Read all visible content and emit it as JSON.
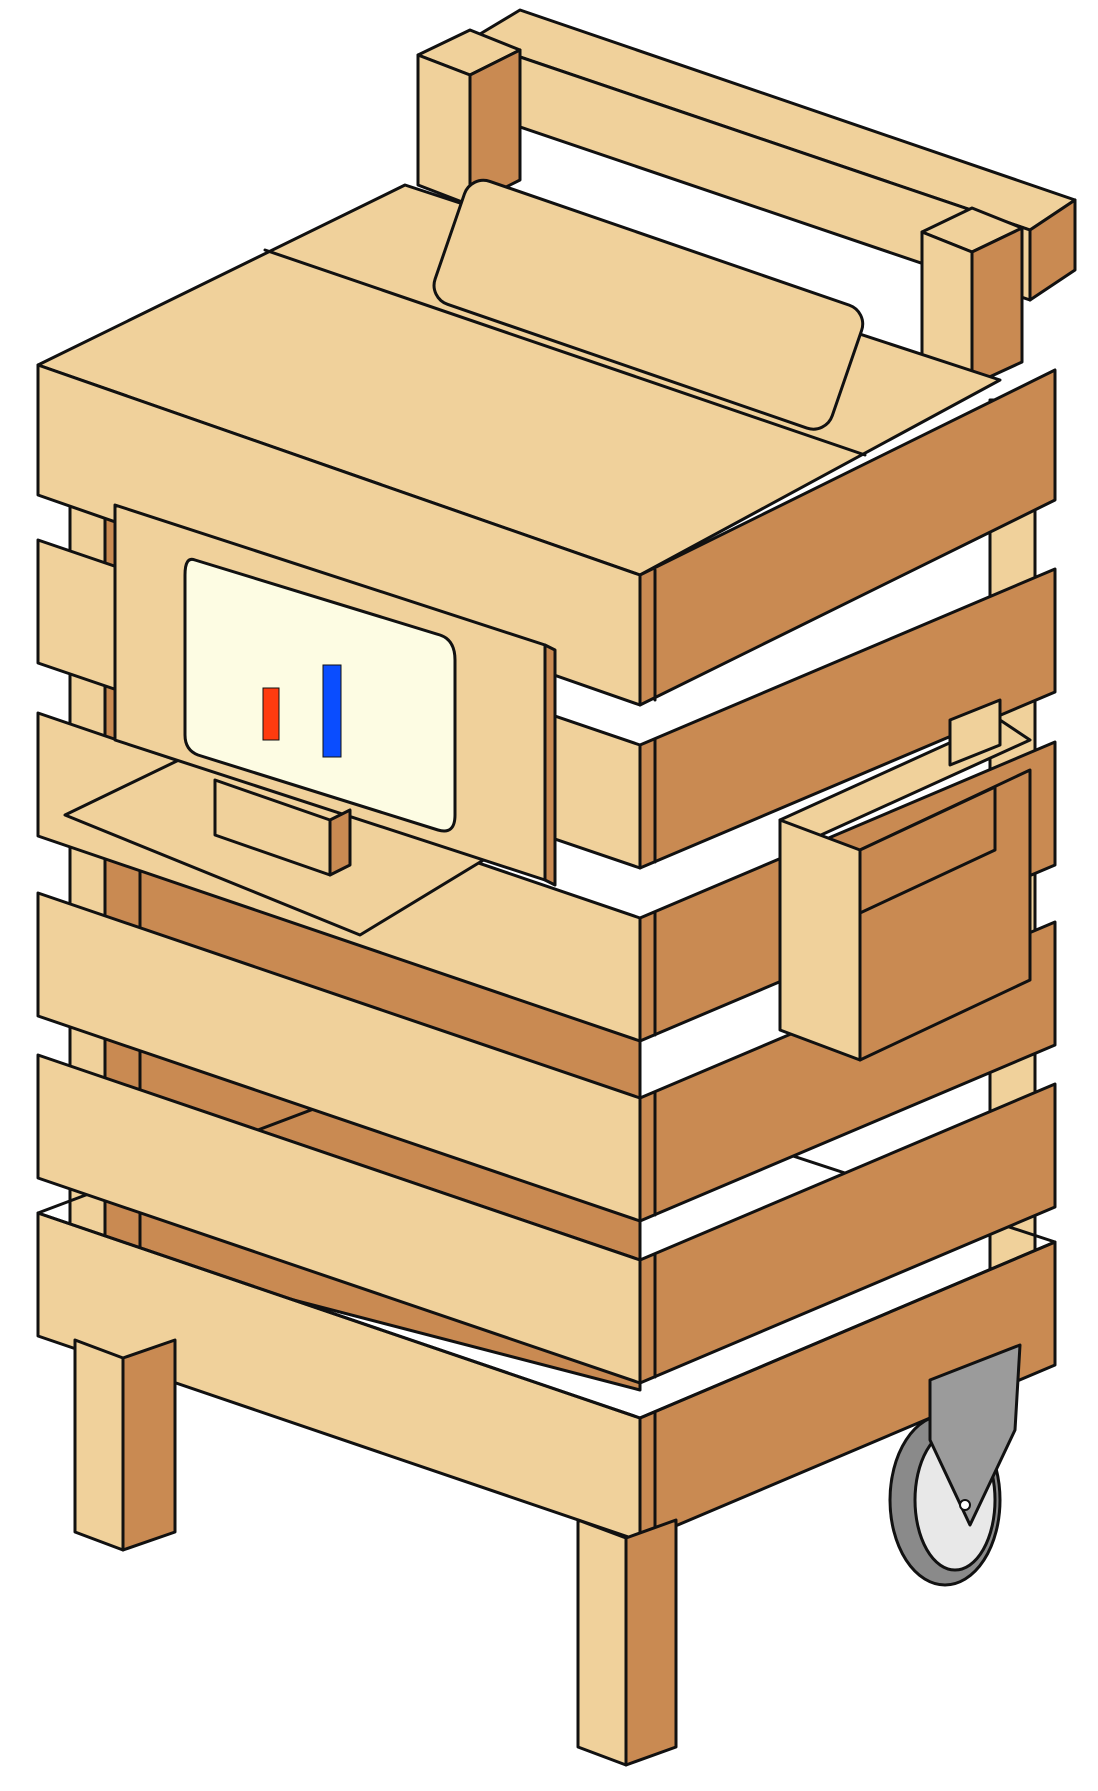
{
  "palette": {
    "wood_light": "#F0D19B",
    "wood_dark": "#C98A52",
    "screen": "#FDFCE3",
    "bar_red": "#FF3B0F",
    "bar_blue": "#0A4DFF",
    "wheel_tire": "#8A8A8A",
    "wheel_hub": "#E8E8E8",
    "caster": "#9B9B9B",
    "outline": "#111111"
  },
  "icons": [
    "wooden-cart",
    "screen-bar-graphic",
    "caster-wheel"
  ]
}
